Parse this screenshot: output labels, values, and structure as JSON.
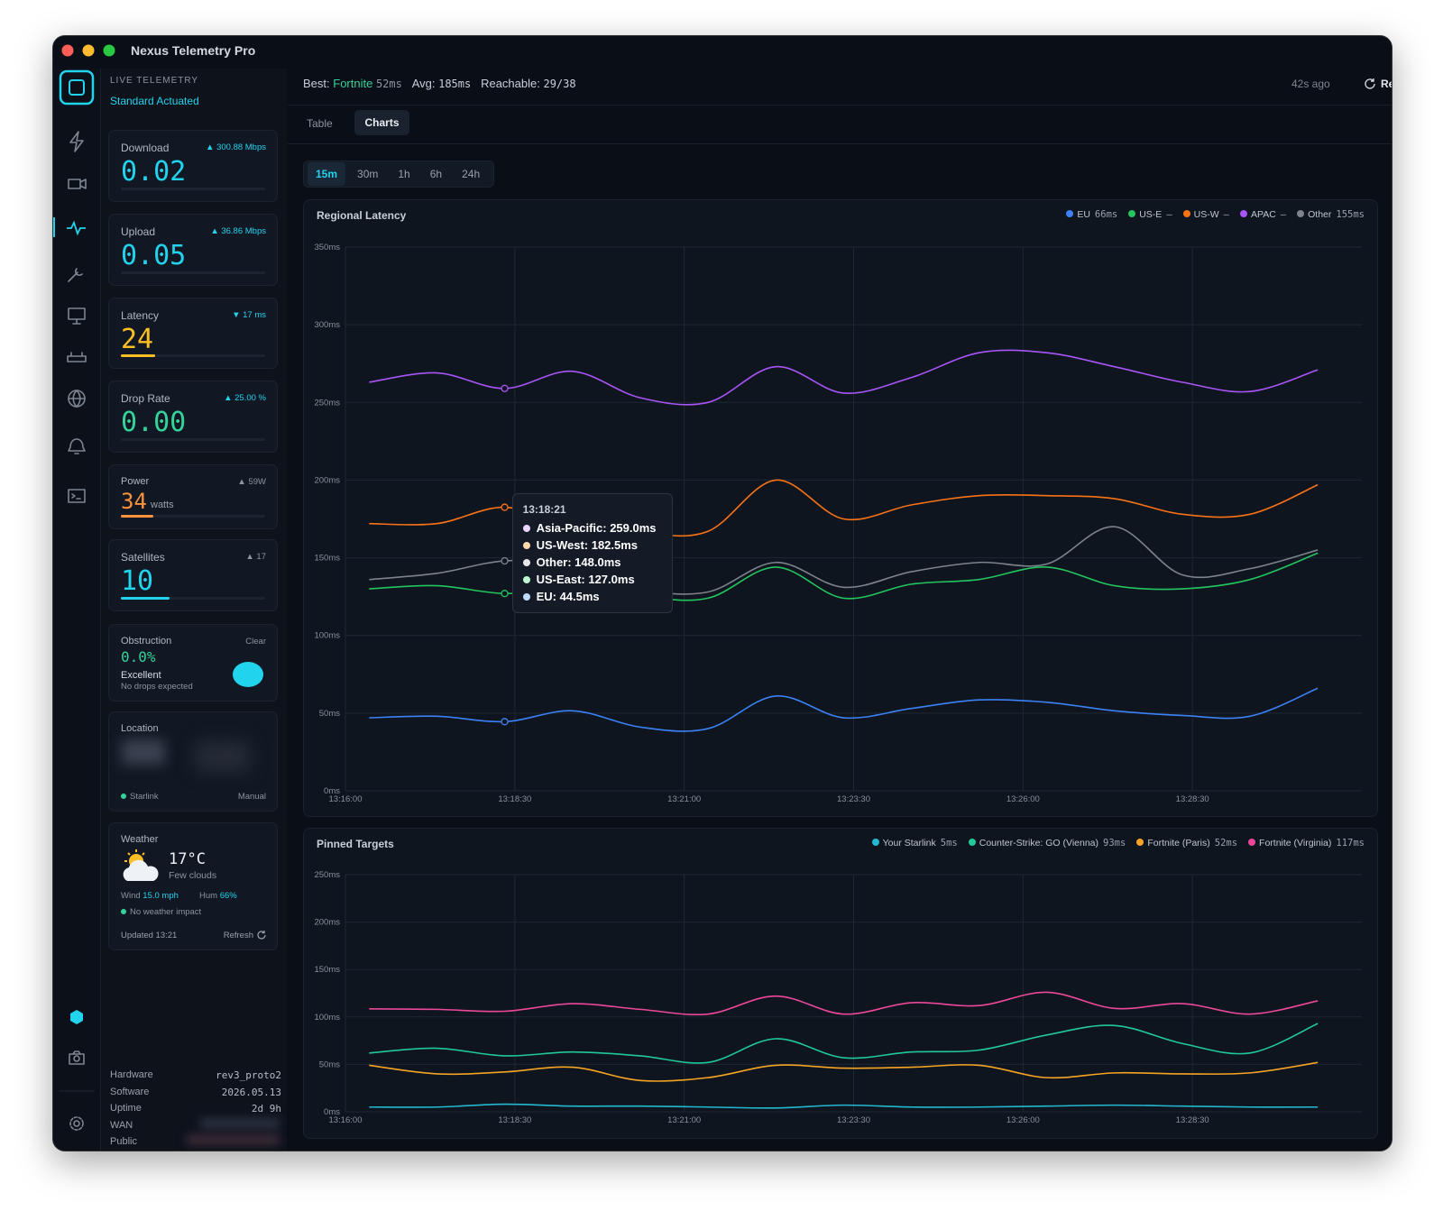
{
  "app": {
    "title": "Nexus Telemetry Pro",
    "mode_label": "LIVE TELEMETRY",
    "mode": "Standard Actuated"
  },
  "header": {
    "best_label": "Best:",
    "best_name": "Fortnite",
    "best_value": "52ms",
    "avg_label": "Avg:",
    "avg_value": "185ms",
    "reachable_label": "Reachable:",
    "reachable_value": "29/38",
    "updated": "42s ago",
    "refresh": "Refresh"
  },
  "tabs": [
    "Table",
    "Charts"
  ],
  "ranges": [
    "15m",
    "30m",
    "1h",
    "6h",
    "24h"
  ],
  "cards": {
    "download": {
      "label": "Download",
      "value": "0.02",
      "delta": "▲ 300.88 Mbps"
    },
    "upload": {
      "label": "Upload",
      "value": "0.05",
      "delta": "▲ 36.86 Mbps"
    },
    "latency": {
      "label": "Latency",
      "value": "24",
      "delta": "▼ 17 ms"
    },
    "drop_rate": {
      "label": "Drop Rate",
      "value": "0.00",
      "delta": "▲ 25.00 %"
    },
    "power": {
      "label": "Power",
      "value": "34",
      "unit": "watts",
      "delta": "▲ 59W"
    },
    "satellites": {
      "label": "Satellites",
      "value": "10",
      "delta": "▲ 17"
    },
    "obstruction": {
      "label": "Obstruction",
      "status": "Clear",
      "value": "0.0%",
      "rating": "Excellent",
      "note": "No drops expected"
    },
    "location": {
      "label": "Location",
      "source": "Starlink",
      "mode": "Manual"
    },
    "weather": {
      "label": "Weather",
      "temp": "17°C",
      "desc": "Few clouds",
      "wind_label": "Wind",
      "wind": "15.0 mph",
      "hum_label": "Hum",
      "hum": "66%",
      "impact": "No weather impact",
      "updated": "Updated 13:21",
      "refresh": "Refresh"
    }
  },
  "system": [
    {
      "label": "Hardware",
      "value": "rev3_proto2"
    },
    {
      "label": "Software",
      "value": "2026.05.13"
    },
    {
      "label": "Uptime",
      "value": "2d 9h"
    },
    {
      "label": "WAN"
    },
    {
      "label": "Public"
    }
  ],
  "chart_data": [
    {
      "type": "line",
      "title": "Regional Latency",
      "x": [
        "13:16:21",
        "13:17:21",
        "13:18:21",
        "13:19:21",
        "13:20:21",
        "13:21:21",
        "13:22:21",
        "13:23:21",
        "13:24:21",
        "13:25:21",
        "13:26:21",
        "13:27:21",
        "13:28:21",
        "13:29:21",
        "13:30:21"
      ],
      "xlim": [
        "13:16:00",
        "13:31:00"
      ],
      "xticks": [
        "13:16:00",
        "13:18:30",
        "13:21:00",
        "13:23:30",
        "13:26:00",
        "13:28:30"
      ],
      "ylim": [
        0,
        350
      ],
      "yticks": [
        {
          "value": 0,
          "label": "0ms"
        },
        {
          "value": 50,
          "label": "50ms"
        },
        {
          "value": 100,
          "label": "100ms"
        },
        {
          "value": 150,
          "label": "150ms"
        },
        {
          "value": 200,
          "label": "200ms"
        },
        {
          "value": 250,
          "label": "250ms"
        },
        {
          "value": 300,
          "label": "300ms"
        },
        {
          "value": 350,
          "label": "350ms"
        }
      ],
      "grid": true,
      "legend": "top-right",
      "series": [
        {
          "name": "EU",
          "color": "#3b82f6",
          "legend_value": "66ms",
          "values": [
            47,
            48,
            44.5,
            51.5,
            41,
            40,
            61,
            47,
            53,
            58.5,
            57,
            51.5,
            48.5,
            48,
            66
          ]
        },
        {
          "name": "US-E",
          "color": "#22c55e",
          "legend_value": "–",
          "values": [
            130,
            132,
            127,
            130,
            125,
            124,
            144,
            124,
            133,
            136,
            144,
            132,
            130,
            136,
            153
          ]
        },
        {
          "name": "US-W",
          "color": "#f97316",
          "legend_value": "–",
          "values": [
            172,
            172,
            182.5,
            170,
            166,
            167,
            200,
            175,
            184,
            190,
            190,
            188,
            178,
            178,
            197
          ]
        },
        {
          "name": "APAC",
          "color": "#a855f7",
          "legend_value": "–",
          "values": [
            263,
            269,
            259,
            270,
            253,
            250,
            273,
            256,
            266,
            282,
            282,
            273,
            263,
            257,
            271
          ]
        },
        {
          "name": "Other",
          "color": "#7d828c",
          "legend_value": "155ms",
          "values": [
            136,
            140,
            148,
            146,
            130,
            128,
            147,
            131,
            141,
            147,
            146,
            170,
            139,
            143,
            155
          ]
        }
      ],
      "tooltip": {
        "x": "13:18:21",
        "items": [
          {
            "text": "Asia-Pacific: 259.0ms",
            "color": "#e9d5ff"
          },
          {
            "text": "US-West: 182.5ms",
            "color": "#fed7aa"
          },
          {
            "text": "Other: 148.0ms",
            "color": "#e5e7eb"
          },
          {
            "text": "US-East: 127.0ms",
            "color": "#bbf7d0"
          },
          {
            "text": "EU: 44.5ms",
            "color": "#bfdbfe"
          }
        ]
      }
    },
    {
      "type": "line",
      "title": "Pinned Targets",
      "x": [
        "13:16:21",
        "13:17:21",
        "13:18:21",
        "13:19:21",
        "13:20:21",
        "13:21:21",
        "13:22:21",
        "13:23:21",
        "13:24:21",
        "13:25:21",
        "13:26:21",
        "13:27:21",
        "13:28:21",
        "13:29:21",
        "13:30:21"
      ],
      "xlim": [
        "13:16:00",
        "13:31:00"
      ],
      "xticks": [
        "13:16:00",
        "13:18:30",
        "13:21:00",
        "13:23:30",
        "13:26:00",
        "13:28:30"
      ],
      "ylim": [
        0,
        250
      ],
      "yticks": [
        {
          "value": 0,
          "label": "0ms"
        },
        {
          "value": 50,
          "label": "50ms"
        },
        {
          "value": 100,
          "label": "100ms"
        },
        {
          "value": 150,
          "label": "150ms"
        },
        {
          "value": 200,
          "label": "200ms"
        },
        {
          "value": 250,
          "label": "250ms"
        }
      ],
      "grid": true,
      "legend": "top-right",
      "series": [
        {
          "name": "Your Starlink",
          "color": "#22b8cf",
          "legend_value": "5ms",
          "values": [
            5,
            5,
            8,
            6,
            6,
            5,
            4,
            7,
            5,
            5,
            6,
            7,
            6,
            5,
            5
          ]
        },
        {
          "name": "Counter-Strike: GO (Vienna)",
          "color": "#20c997",
          "legend_value": "93ms",
          "values": [
            62,
            67,
            59,
            63,
            59,
            52,
            77,
            57,
            63,
            65,
            81,
            91,
            72,
            62,
            93
          ]
        },
        {
          "name": "Fortnite (Paris)",
          "color": "#f5a524",
          "legend_value": "52ms",
          "values": [
            49,
            40,
            42,
            47,
            33,
            36,
            49,
            46,
            47,
            49,
            36,
            41,
            40,
            41,
            52
          ]
        },
        {
          "name": "Fortnite (Virginia)",
          "color": "#ec4899",
          "legend_value": "117ms",
          "values": [
            108.5,
            108,
            106,
            114,
            108,
            103,
            122,
            103,
            115,
            112,
            126,
            109,
            114,
            103,
            117
          ]
        }
      ]
    }
  ]
}
